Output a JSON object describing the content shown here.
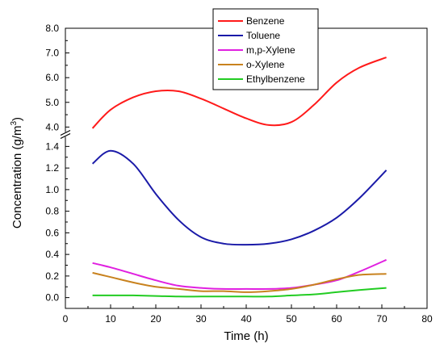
{
  "chart_data": {
    "type": "line",
    "xlabel": "Time (h)",
    "ylabel": "Concentration (g/m",
    "ylabel_superscript": "3",
    "ylabel_close": ")",
    "xlim": [
      0,
      80
    ],
    "x_ticks": [
      "0",
      "10",
      "20",
      "30",
      "40",
      "50",
      "60",
      "70",
      "80"
    ],
    "y_axis_break": true,
    "y_lower_range": [
      -0.1,
      1.5
    ],
    "y_upper_range": [
      3.75,
      8.0
    ],
    "y_lower_ticks": [
      "0.0",
      "0.2",
      "0.4",
      "0.6",
      "0.8",
      "1.0",
      "1.2",
      "1.4"
    ],
    "y_upper_ticks": [
      "4.0",
      "5.0",
      "6.0",
      "7.0",
      "8.0"
    ],
    "grid": false,
    "legend_position": "top-center",
    "x": [
      6,
      10,
      15,
      20,
      25,
      30,
      35,
      40,
      45,
      50,
      55,
      60,
      65,
      71
    ],
    "series": [
      {
        "name": "Benzene",
        "color": "#ff1a1a",
        "segment": "upper",
        "values": [
          3.95,
          4.7,
          5.2,
          5.45,
          5.45,
          5.15,
          4.75,
          4.35,
          4.08,
          4.2,
          4.9,
          5.8,
          6.4,
          6.82
        ]
      },
      {
        "name": "Toluene",
        "color": "#1a1aa8",
        "segment": "lower",
        "values": [
          1.24,
          1.36,
          1.24,
          0.96,
          0.72,
          0.56,
          0.5,
          0.49,
          0.5,
          0.54,
          0.62,
          0.74,
          0.92,
          1.18
        ]
      },
      {
        "name": "m,p-Xylene",
        "color": "#e020e0",
        "segment": "lower",
        "values": [
          0.32,
          0.28,
          0.22,
          0.16,
          0.11,
          0.09,
          0.08,
          0.08,
          0.08,
          0.09,
          0.12,
          0.16,
          0.24,
          0.35
        ]
      },
      {
        "name": "o-Xylene",
        "color": "#c8821e",
        "segment": "lower",
        "values": [
          0.23,
          0.19,
          0.14,
          0.1,
          0.08,
          0.06,
          0.06,
          0.05,
          0.06,
          0.08,
          0.12,
          0.17,
          0.21,
          0.22
        ]
      },
      {
        "name": "Ethylbenzene",
        "color": "#22cc22",
        "segment": "lower",
        "values": [
          0.02,
          0.02,
          0.02,
          0.015,
          0.01,
          0.01,
          0.01,
          0.01,
          0.01,
          0.02,
          0.03,
          0.05,
          0.07,
          0.09
        ]
      }
    ]
  }
}
